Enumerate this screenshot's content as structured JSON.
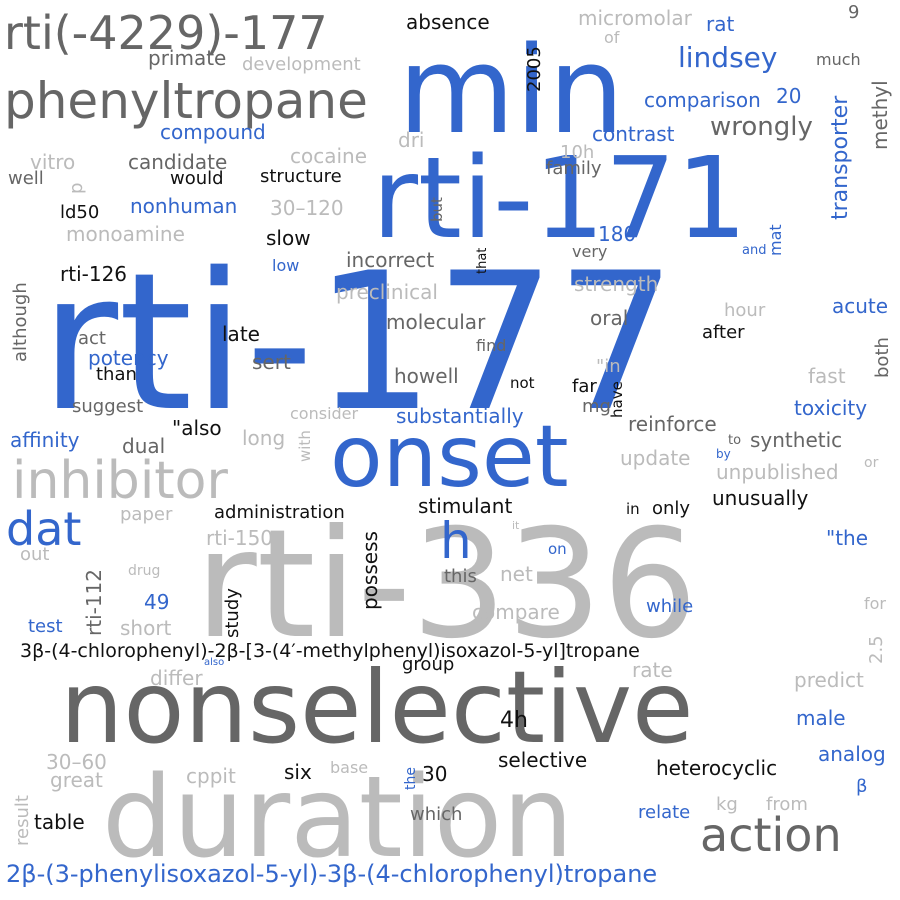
{
  "palette": {
    "blue": "#3366cc",
    "dark": "#666666",
    "light": "#bbbbbb",
    "black": "#111111"
  },
  "words": [
    {
      "id": "rti-177",
      "text": "rti-177",
      "color": "blue"
    },
    {
      "id": "rti-336",
      "text": "rti-336",
      "color": "light"
    },
    {
      "id": "rti-171",
      "text": "rti-171",
      "color": "blue"
    },
    {
      "id": "min",
      "text": "min",
      "color": "blue"
    },
    {
      "id": "nonselective",
      "text": "nonselective",
      "color": "dark"
    },
    {
      "id": "duration",
      "text": "duration",
      "color": "light"
    },
    {
      "id": "onset",
      "text": "onset",
      "color": "blue"
    },
    {
      "id": "phenyltropane",
      "text": "phenyltropane",
      "color": "dark"
    },
    {
      "id": "rti-4229-177",
      "text": "rti(-4229)-177",
      "color": "dark"
    },
    {
      "id": "inhibitor",
      "text": "inhibitor",
      "color": "light"
    },
    {
      "id": "action",
      "text": "action",
      "color": "dark"
    },
    {
      "id": "dat",
      "text": "dat",
      "color": "blue"
    },
    {
      "id": "h",
      "text": "h",
      "color": "blue"
    },
    {
      "id": "tropane-long-1",
      "text": "3β-(4-chlorophenyl)-2β-[3-(4′-methylphenyl)isoxazol-5-yl]tropane",
      "color": "black"
    },
    {
      "id": "tropane-long-2",
      "text": "2β-(3-phenylisoxazol-5-yl)-3β-(4-chlorophenyl)tropane",
      "color": "blue"
    },
    {
      "id": "lindsey",
      "text": "lindsey",
      "color": "blue"
    },
    {
      "id": "wrongly",
      "text": "wrongly",
      "color": "dark"
    },
    {
      "id": "absence",
      "text": "absence",
      "color": "black"
    },
    {
      "id": "micromolar",
      "text": "micromolar",
      "color": "light"
    },
    {
      "id": "rat",
      "text": "rat",
      "color": "blue"
    },
    {
      "id": "of",
      "text": "of",
      "color": "light"
    },
    {
      "id": "much",
      "text": "much",
      "color": "dark"
    },
    {
      "id": "n9",
      "text": "9",
      "color": "dark"
    },
    {
      "id": "primate",
      "text": "primate",
      "color": "dark"
    },
    {
      "id": "development",
      "text": "development",
      "color": "light"
    },
    {
      "id": "comparison",
      "text": "comparison",
      "color": "blue"
    },
    {
      "id": "n20",
      "text": "20",
      "color": "blue"
    },
    {
      "id": "compound",
      "text": "compound",
      "color": "blue"
    },
    {
      "id": "contrast",
      "text": "contrast",
      "color": "blue"
    },
    {
      "id": "transporter",
      "text": "transporter",
      "color": "blue"
    },
    {
      "id": "methyl",
      "text": "methyl",
      "color": "dark"
    },
    {
      "id": "n2005",
      "text": "2005",
      "color": "black"
    },
    {
      "id": "dri",
      "text": "dri",
      "color": "light"
    },
    {
      "id": "cocaine",
      "text": "cocaine",
      "color": "light"
    },
    {
      "id": "candidate",
      "text": "candidate",
      "color": "dark"
    },
    {
      "id": "vitro",
      "text": "vitro",
      "color": "light"
    },
    {
      "id": "well",
      "text": "well",
      "color": "dark"
    },
    {
      "id": "p",
      "text": "p",
      "color": "light"
    },
    {
      "id": "would",
      "text": "would",
      "color": "black"
    },
    {
      "id": "structure",
      "text": "structure",
      "color": "black"
    },
    {
      "id": "n10h",
      "text": "10h",
      "color": "light"
    },
    {
      "id": "family",
      "text": "family",
      "color": "dark"
    },
    {
      "id": "ld50",
      "text": "ld50",
      "color": "black"
    },
    {
      "id": "nonhuman",
      "text": "nonhuman",
      "color": "blue"
    },
    {
      "id": "r30-120",
      "text": "30–120",
      "color": "light"
    },
    {
      "id": "but",
      "text": "but",
      "color": "dark"
    },
    {
      "id": "monoamine",
      "text": "monoamine",
      "color": "light"
    },
    {
      "id": "slow",
      "text": "slow",
      "color": "black"
    },
    {
      "id": "n180",
      "text": "180",
      "color": "blue"
    },
    {
      "id": "very",
      "text": "very",
      "color": "dark"
    },
    {
      "id": "and",
      "text": "and",
      "color": "blue"
    },
    {
      "id": "mat",
      "text": "mat",
      "color": "blue"
    },
    {
      "id": "low",
      "text": "low",
      "color": "blue"
    },
    {
      "id": "incorrect",
      "text": "incorrect",
      "color": "dark"
    },
    {
      "id": "that",
      "text": "that",
      "color": "black"
    },
    {
      "id": "rti-126",
      "text": "rti-126",
      "color": "black"
    },
    {
      "id": "although",
      "text": "although",
      "color": "dark"
    },
    {
      "id": "preclinical",
      "text": "preclinical",
      "color": "light"
    },
    {
      "id": "strength",
      "text": "strength",
      "color": "light"
    },
    {
      "id": "acute",
      "text": "acute",
      "color": "blue"
    },
    {
      "id": "hour",
      "text": "hour",
      "color": "light"
    },
    {
      "id": "molecular",
      "text": "molecular",
      "color": "dark"
    },
    {
      "id": "oral",
      "text": "oral",
      "color": "dark"
    },
    {
      "id": "late",
      "text": "late",
      "color": "black"
    },
    {
      "id": "act",
      "text": "act",
      "color": "dark"
    },
    {
      "id": "after",
      "text": "after",
      "color": "black"
    },
    {
      "id": "find",
      "text": "find",
      "color": "dark"
    },
    {
      "id": "both",
      "text": "both",
      "color": "dark"
    },
    {
      "id": "potency",
      "text": "potency",
      "color": "blue"
    },
    {
      "id": "sert",
      "text": "sert",
      "color": "dark"
    },
    {
      "id": "than",
      "text": "than",
      "color": "black"
    },
    {
      "id": "howell",
      "text": "howell",
      "color": "dark"
    },
    {
      "id": "quote-in",
      "text": "\"in",
      "color": "light"
    },
    {
      "id": "fast",
      "text": "fast",
      "color": "light"
    },
    {
      "id": "not",
      "text": "not",
      "color": "black"
    },
    {
      "id": "far",
      "text": "far",
      "color": "black"
    },
    {
      "id": "have",
      "text": "have",
      "color": "black"
    },
    {
      "id": "suggest",
      "text": "suggest",
      "color": "dark"
    },
    {
      "id": "consider",
      "text": "consider",
      "color": "light"
    },
    {
      "id": "substantially",
      "text": "substantially",
      "color": "blue"
    },
    {
      "id": "mg",
      "text": "mg",
      "color": "dark"
    },
    {
      "id": "toxicity",
      "text": "toxicity",
      "color": "blue"
    },
    {
      "id": "affinity",
      "text": "affinity",
      "color": "blue"
    },
    {
      "id": "quote-also",
      "text": "\"also",
      "color": "black"
    },
    {
      "id": "dual",
      "text": "dual",
      "color": "dark"
    },
    {
      "id": "long",
      "text": "long",
      "color": "light"
    },
    {
      "id": "with",
      "text": "with",
      "color": "light"
    },
    {
      "id": "reinforce",
      "text": "reinforce",
      "color": "dark"
    },
    {
      "id": "to",
      "text": "to",
      "color": "dark"
    },
    {
      "id": "synthetic",
      "text": "synthetic",
      "color": "dark"
    },
    {
      "id": "by",
      "text": "by",
      "color": "blue"
    },
    {
      "id": "update",
      "text": "update",
      "color": "light"
    },
    {
      "id": "unpublished",
      "text": "unpublished",
      "color": "light"
    },
    {
      "id": "or",
      "text": "or",
      "color": "light"
    },
    {
      "id": "unusually",
      "text": "unusually",
      "color": "black"
    },
    {
      "id": "stimulant",
      "text": "stimulant",
      "color": "black"
    },
    {
      "id": "paper",
      "text": "paper",
      "color": "light"
    },
    {
      "id": "administration",
      "text": "administration",
      "color": "black"
    },
    {
      "id": "in",
      "text": "in",
      "color": "black"
    },
    {
      "id": "only",
      "text": "only",
      "color": "black"
    },
    {
      "id": "quote-the",
      "text": "\"the",
      "color": "blue"
    },
    {
      "id": "it",
      "text": "it",
      "color": "light"
    },
    {
      "id": "rti-150",
      "text": "rti-150",
      "color": "light"
    },
    {
      "id": "possess",
      "text": "possess",
      "color": "black"
    },
    {
      "id": "out",
      "text": "out",
      "color": "light"
    },
    {
      "id": "rti-112",
      "text": "rti-112",
      "color": "dark"
    },
    {
      "id": "drug",
      "text": "drug",
      "color": "light"
    },
    {
      "id": "on",
      "text": "on",
      "color": "blue"
    },
    {
      "id": "this",
      "text": "this",
      "color": "dark"
    },
    {
      "id": "net",
      "text": "net",
      "color": "light"
    },
    {
      "id": "n49",
      "text": "49",
      "color": "blue"
    },
    {
      "id": "compare",
      "text": "compare",
      "color": "light"
    },
    {
      "id": "while",
      "text": "while",
      "color": "blue"
    },
    {
      "id": "for",
      "text": "for",
      "color": "light"
    },
    {
      "id": "test",
      "text": "test",
      "color": "blue"
    },
    {
      "id": "short",
      "text": "short",
      "color": "light"
    },
    {
      "id": "study",
      "text": "study",
      "color": "black"
    },
    {
      "id": "n2-5",
      "text": "2.5",
      "color": "light"
    },
    {
      "id": "also",
      "text": "also",
      "color": "blue"
    },
    {
      "id": "group",
      "text": "group",
      "color": "black"
    },
    {
      "id": "differ",
      "text": "differ",
      "color": "light"
    },
    {
      "id": "rate",
      "text": "rate",
      "color": "light"
    },
    {
      "id": "predict",
      "text": "predict",
      "color": "light"
    },
    {
      "id": "male",
      "text": "male",
      "color": "blue"
    },
    {
      "id": "n4h",
      "text": "4h",
      "color": "black"
    },
    {
      "id": "analog",
      "text": "analog",
      "color": "blue"
    },
    {
      "id": "r30-60",
      "text": "30–60",
      "color": "light"
    },
    {
      "id": "great",
      "text": "great",
      "color": "light"
    },
    {
      "id": "cppit",
      "text": "cppit",
      "color": "light"
    },
    {
      "id": "six",
      "text": "six",
      "color": "black"
    },
    {
      "id": "base",
      "text": "base",
      "color": "light"
    },
    {
      "id": "the",
      "text": "the",
      "color": "blue"
    },
    {
      "id": "n30",
      "text": "30",
      "color": "black"
    },
    {
      "id": "selective",
      "text": "selective",
      "color": "black"
    },
    {
      "id": "heterocyclic",
      "text": "heterocyclic",
      "color": "black"
    },
    {
      "id": "beta",
      "text": "β",
      "color": "blue"
    },
    {
      "id": "result",
      "text": "result",
      "color": "light"
    },
    {
      "id": "table",
      "text": "table",
      "color": "black"
    },
    {
      "id": "which",
      "text": "which",
      "color": "dark"
    },
    {
      "id": "kg",
      "text": "kg",
      "color": "light"
    },
    {
      "id": "from",
      "text": "from",
      "color": "light"
    },
    {
      "id": "relate",
      "text": "relate",
      "color": "blue"
    }
  ]
}
